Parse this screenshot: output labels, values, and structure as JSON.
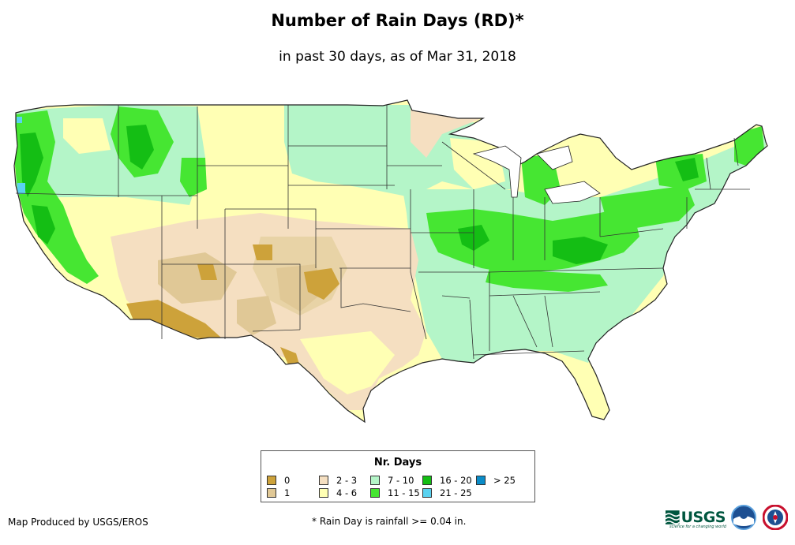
{
  "title": "Number of Rain Days (RD)*",
  "subtitle": "in past 30 days, as of Mar 31, 2018",
  "legend": {
    "title": "Nr. Days",
    "items": [
      {
        "label": "0",
        "color": "#cda23a"
      },
      {
        "label": "1",
        "color": "#e0c896"
      },
      {
        "label": "2 - 3",
        "color": "#f5dfc1"
      },
      {
        "label": "4 - 6",
        "color": "#ffffb4"
      },
      {
        "label": "7 - 10",
        "color": "#b4f5c8"
      },
      {
        "label": "11 - 15",
        "color": "#46e632"
      },
      {
        "label": "16 - 20",
        "color": "#14be14"
      },
      {
        "label": "21 - 25",
        "color": "#5ad2f0"
      },
      {
        "label": "> 25",
        "color": "#0a8cc8"
      }
    ]
  },
  "producer": "Map Produced by USGS/EROS",
  "footnote": "* Rain Day is rainfall >= 0.04 in.",
  "logos": {
    "usgs_text": "USGS",
    "usgs_tagline": "science for a changing world",
    "noaa": "noaa",
    "nws": "NATIONAL WEATHER SERVICE"
  },
  "map": {
    "region": "contiguous United States",
    "colors": {
      "outline": "#222222",
      "state_border": "#333333"
    }
  }
}
